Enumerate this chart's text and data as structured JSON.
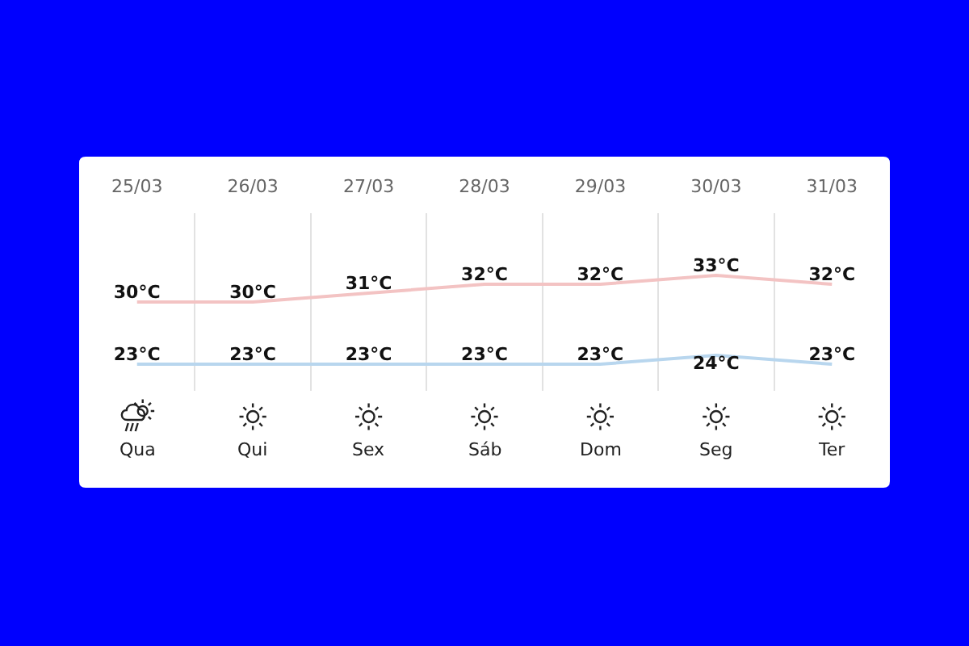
{
  "chart_data": {
    "type": "line",
    "categories": [
      "25/03",
      "26/03",
      "27/03",
      "28/03",
      "29/03",
      "30/03",
      "31/03"
    ],
    "series": [
      {
        "color": "#f3c3c3",
        "values": [
          30,
          30,
          31,
          32,
          32,
          33,
          32
        ],
        "value_labels": [
          "30°C",
          "30°C",
          "31°C",
          "32°C",
          "32°C",
          "33°C",
          "32°C"
        ]
      },
      {
        "color": "#b8d6ee",
        "values": [
          23,
          23,
          23,
          23,
          23,
          24,
          23
        ],
        "value_labels": [
          "23°C",
          "23°C",
          "23°C",
          "23°C",
          "23°C",
          "24°C",
          "23°C"
        ]
      }
    ],
    "ylim": [
      20,
      40
    ],
    "grid": "x",
    "tick_labels": "x",
    "annotations": [
      "Qua",
      "Qui",
      "Sex",
      "Sáb",
      "Dom",
      "Seg",
      "Ter"
    ]
  }
}
